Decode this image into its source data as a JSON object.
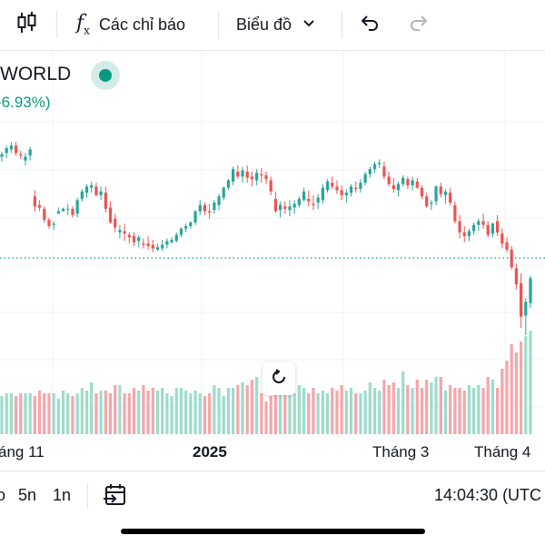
{
  "toolbar": {
    "indicators_label": "Các chỉ báo",
    "chart_type_label": "Biểu đồ",
    "icons": [
      "candles-icon",
      "function-icon",
      "chevron-down-icon",
      "undo-icon",
      "redo-icon"
    ]
  },
  "legend": {
    "symbol": "WORLD",
    "change": "-6.93%)"
  },
  "x_axis": {
    "labels": [
      "áng 11",
      "2025",
      "Tháng 3",
      "Tháng 4"
    ]
  },
  "bottom_bar": {
    "ranges": [
      "o",
      "5n",
      "1n"
    ],
    "time": "14:04:30 (UTC"
  },
  "colors": {
    "up": "#26a69a",
    "down": "#ef5350",
    "up_volume": "#9ddccb",
    "down_volume": "#f5a6aa",
    "accent": "#089981"
  },
  "chart_data": {
    "type": "candlestick",
    "candles": [
      [
        232,
        236,
        228,
        234
      ],
      [
        235,
        241,
        231,
        239
      ],
      [
        238,
        244,
        235,
        241
      ],
      [
        241,
        244,
        233,
        235
      ],
      [
        234,
        237,
        230,
        233
      ],
      [
        229,
        235,
        225,
        232
      ],
      [
        233,
        240,
        229,
        238
      ],
      [
        200,
        205,
        188,
        192
      ],
      [
        193,
        197,
        188,
        191
      ],
      [
        190,
        192,
        179,
        181
      ],
      [
        181,
        183,
        174,
        176
      ],
      [
        177,
        180,
        173,
        178
      ],
      [
        186,
        191,
        186,
        188
      ],
      [
        188,
        191,
        188,
        190
      ],
      [
        190,
        194,
        185,
        190
      ],
      [
        190,
        192,
        183,
        185
      ],
      [
        186,
        199,
        183,
        197
      ],
      [
        198,
        206,
        196,
        204
      ],
      [
        203,
        210,
        199,
        208
      ],
      [
        207,
        212,
        203,
        209
      ],
      [
        208,
        211,
        200,
        201
      ],
      [
        201,
        208,
        197,
        204
      ],
      [
        203,
        208,
        187,
        190
      ],
      [
        191,
        196,
        178,
        179
      ],
      [
        182,
        186,
        171,
        175
      ],
      [
        171,
        177,
        166,
        173
      ],
      [
        172,
        178,
        164,
        170
      ],
      [
        169,
        171,
        162,
        167
      ],
      [
        168,
        171,
        160,
        163
      ],
      [
        164,
        169,
        159,
        167
      ],
      [
        162,
        166,
        158,
        161
      ],
      [
        162,
        168,
        157,
        160
      ],
      [
        161,
        165,
        155,
        158
      ],
      [
        157,
        162,
        156,
        159
      ],
      [
        158,
        165,
        156,
        161
      ],
      [
        161,
        166,
        158,
        164
      ],
      [
        163,
        167,
        162,
        165
      ],
      [
        164,
        171,
        163,
        169
      ],
      [
        169,
        175,
        167,
        174
      ],
      [
        174,
        178,
        171,
        176
      ],
      [
        176,
        180,
        174,
        179
      ],
      [
        179,
        189,
        177,
        188
      ],
      [
        188,
        197,
        185,
        193
      ],
      [
        193,
        195,
        185,
        188
      ],
      [
        188,
        194,
        182,
        187
      ],
      [
        189,
        197,
        186,
        195
      ],
      [
        193,
        202,
        189,
        200
      ],
      [
        199,
        208,
        197,
        207
      ],
      [
        207,
        214,
        205,
        213
      ],
      [
        212,
        224,
        209,
        222
      ],
      [
        220,
        225,
        214,
        216
      ],
      [
        216,
        224,
        211,
        221
      ],
      [
        220,
        225,
        211,
        215
      ],
      [
        216,
        220,
        208,
        214
      ],
      [
        213,
        222,
        209,
        219
      ],
      [
        218,
        223,
        211,
        217
      ],
      [
        217,
        220,
        210,
        214
      ],
      [
        213,
        216,
        201,
        204
      ],
      [
        198,
        204,
        187,
        188
      ],
      [
        189,
        196,
        183,
        193
      ],
      [
        192,
        196,
        186,
        190
      ],
      [
        189,
        197,
        184,
        192
      ],
      [
        191,
        197,
        186,
        194
      ],
      [
        193,
        200,
        191,
        198
      ],
      [
        197,
        207,
        196,
        204
      ],
      [
        198,
        205,
        192,
        196
      ],
      [
        194,
        201,
        189,
        193
      ],
      [
        195,
        202,
        190,
        199
      ],
      [
        197,
        210,
        194,
        207
      ],
      [
        205,
        214,
        203,
        212
      ],
      [
        211,
        216,
        206,
        208
      ],
      [
        208,
        213,
        202,
        205
      ],
      [
        205,
        209,
        197,
        201
      ],
      [
        201,
        206,
        195,
        203
      ],
      [
        203,
        210,
        200,
        208
      ],
      [
        207,
        212,
        203,
        206
      ],
      [
        206,
        214,
        203,
        211
      ],
      [
        211,
        220,
        209,
        218
      ],
      [
        218,
        224,
        215,
        222
      ],
      [
        222,
        228,
        219,
        226
      ],
      [
        226,
        230,
        223,
        227
      ],
      [
        224,
        228,
        214,
        216
      ],
      [
        216,
        220,
        208,
        210
      ],
      [
        209,
        215,
        203,
        206
      ],
      [
        205,
        212,
        200,
        210
      ],
      [
        210,
        217,
        208,
        215
      ],
      [
        214,
        216,
        206,
        209
      ],
      [
        209,
        216,
        205,
        213
      ],
      [
        212,
        215,
        206,
        207
      ],
      [
        207,
        209,
        198,
        200
      ],
      [
        200,
        203,
        191,
        192
      ],
      [
        194,
        197,
        189,
        195
      ],
      [
        196,
        209,
        193,
        208
      ],
      [
        208,
        211,
        199,
        202
      ],
      [
        201,
        206,
        194,
        204
      ],
      [
        203,
        207,
        193,
        195
      ],
      [
        193,
        196,
        178,
        180
      ],
      [
        180,
        185,
        166,
        171
      ],
      [
        171,
        176,
        163,
        168
      ],
      [
        168,
        174,
        164,
        172
      ],
      [
        172,
        179,
        169,
        177
      ],
      [
        177,
        182,
        172,
        180
      ],
      [
        180,
        186,
        174,
        177
      ],
      [
        177,
        180,
        167,
        169
      ],
      [
        170,
        179,
        167,
        178
      ],
      [
        180,
        185,
        168,
        171
      ],
      [
        170,
        174,
        158,
        162
      ],
      [
        163,
        167,
        155,
        157
      ],
      [
        157,
        160,
        141,
        143
      ],
      [
        142,
        146,
        125,
        129
      ],
      [
        130,
        138,
        94,
        103
      ],
      [
        104,
        118,
        88,
        115
      ],
      [
        114,
        136,
        110,
        134
      ]
    ],
    "volumes": [
      14,
      15,
      15,
      14,
      15,
      15,
      15,
      14,
      16,
      15,
      15,
      15,
      13,
      16,
      15,
      14,
      15,
      17,
      16,
      19,
      15,
      16,
      16,
      15,
      18,
      18,
      15,
      15,
      17,
      16,
      18,
      16,
      17,
      16,
      17,
      15,
      14,
      17,
      17,
      16,
      15,
      16,
      15,
      14,
      15,
      18,
      17,
      14,
      17,
      17,
      18,
      19,
      18,
      20,
      21,
      15,
      12,
      14,
      15,
      16,
      15,
      16,
      15,
      18,
      17,
      15,
      17,
      15,
      16,
      15,
      17,
      16,
      18,
      16,
      17,
      15,
      15,
      16,
      19,
      17,
      16,
      20,
      18,
      19,
      17,
      23,
      18,
      17,
      20,
      17,
      20,
      19,
      21,
      21,
      16,
      18,
      17,
      17,
      16,
      18,
      17,
      18,
      17,
      21,
      20,
      17,
      24,
      27,
      33,
      30,
      34,
      36,
      38
    ]
  }
}
